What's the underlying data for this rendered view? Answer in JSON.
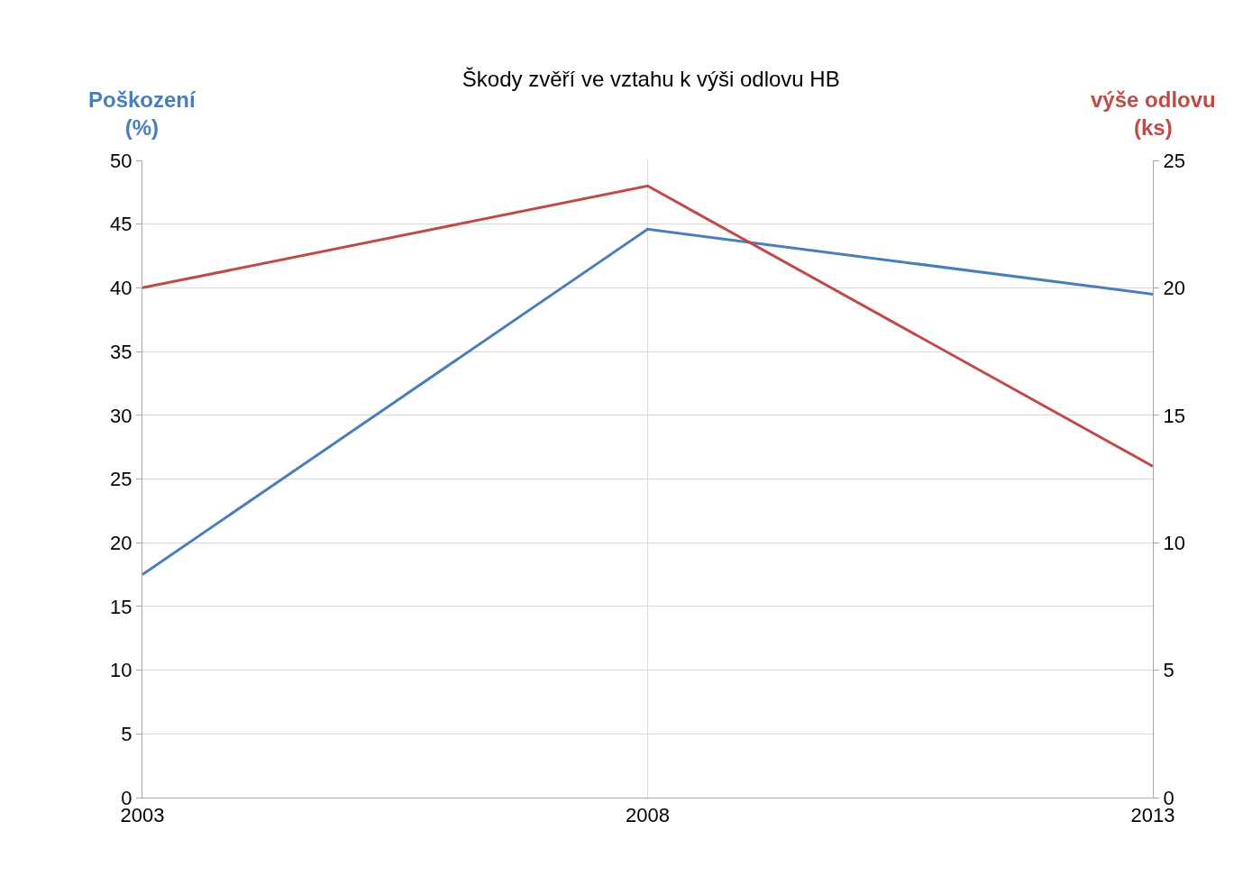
{
  "chart_data": {
    "type": "line",
    "title": "Škody zvěří ve vztahu k výši odlovu HB",
    "ylabel": "Poškození (%)",
    "y2label": "výše odlovu (ks)",
    "x": [
      2003,
      2008,
      2013
    ],
    "xlim": [
      2003,
      2013
    ],
    "xticks": [
      2003,
      2008,
      2013
    ],
    "ylim": [
      0,
      50
    ],
    "yticks": [
      0,
      5,
      10,
      15,
      20,
      25,
      30,
      35,
      40,
      45,
      50
    ],
    "y2lim": [
      0,
      25
    ],
    "y2ticks": [
      0,
      5,
      10,
      15,
      20,
      25
    ],
    "grid": true,
    "marker": "none",
    "line_style": "solid",
    "series": [
      {
        "color": "#4a7ebb",
        "values": [
          17.5,
          44.6,
          39.5
        ]
      },
      {
        "color": "#be4b48",
        "values": [
          20.0,
          24.0,
          13.0
        ],
        "axis": "y2"
      }
    ]
  }
}
